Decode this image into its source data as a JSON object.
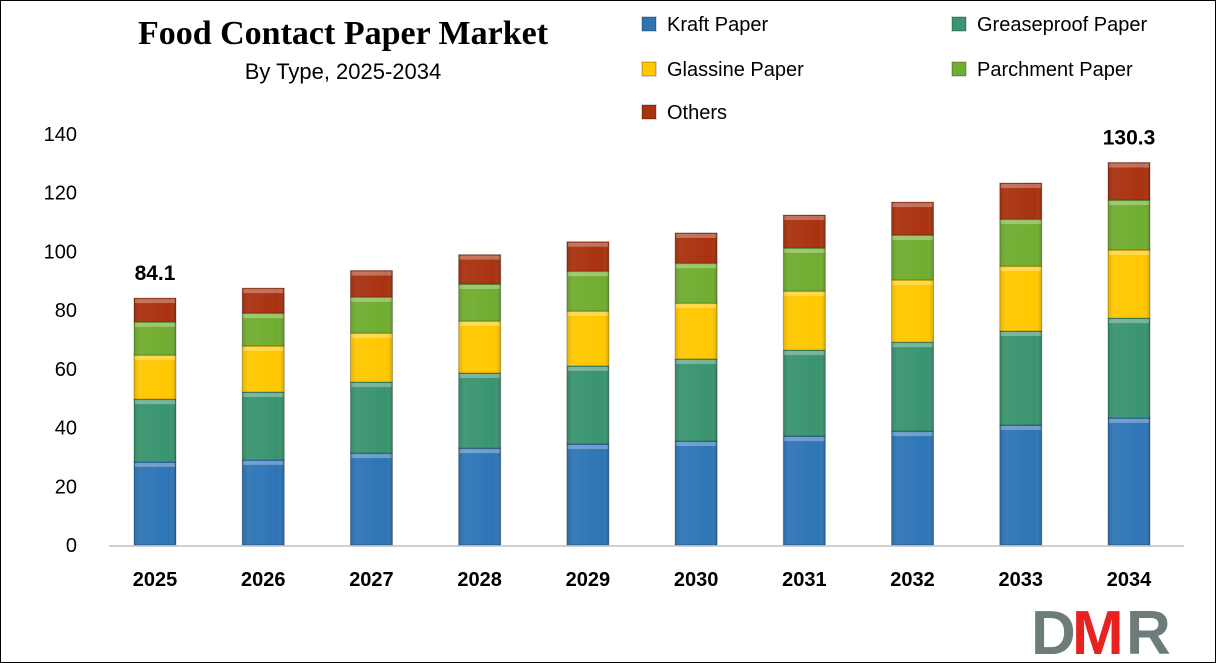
{
  "chart_data": {
    "type": "bar",
    "stacked": true,
    "title": "Food Contact Paper Market",
    "subtitle": "By Type, 2025-2034",
    "xlabel": "",
    "ylabel": "",
    "ylim": [
      0,
      140
    ],
    "yticks": [
      0,
      20,
      40,
      60,
      80,
      100,
      120,
      140
    ],
    "grid": false,
    "legend_position": "top-right",
    "categories": [
      "2025",
      "2026",
      "2027",
      "2028",
      "2029",
      "2030",
      "2031",
      "2032",
      "2033",
      "2034"
    ],
    "series": [
      {
        "name": "Kraft Paper",
        "color": "#2E75B6",
        "values": [
          28.3,
          29.0,
          31.3,
          33.0,
          34.4,
          35.4,
          37.1,
          38.8,
          40.9,
          43.3
        ]
      },
      {
        "name": "Greaseproof Paper",
        "color": "#3A9470",
        "values": [
          21.4,
          23.1,
          24.2,
          25.6,
          26.6,
          28.0,
          29.3,
          30.3,
          32.0,
          34.0
        ]
      },
      {
        "name": "Glassine Paper",
        "color": "#FFC800",
        "values": [
          15.0,
          15.7,
          16.7,
          17.7,
          18.7,
          19.0,
          20.1,
          21.2,
          22.1,
          23.2
        ]
      },
      {
        "name": "Parchment Paper",
        "color": "#70AD30",
        "values": [
          11.3,
          11.2,
          12.3,
          12.6,
          13.6,
          13.6,
          14.7,
          15.3,
          16.0,
          17.0
        ]
      },
      {
        "name": "Others",
        "color": "#A93210",
        "values": [
          8.1,
          8.5,
          9.0,
          10.0,
          10.0,
          10.3,
          11.2,
          11.2,
          12.3,
          12.8
        ]
      }
    ],
    "data_labels": [
      {
        "category": "2025",
        "text": "84.1"
      },
      {
        "category": "2034",
        "text": "130.3"
      }
    ]
  },
  "logo": {
    "text": "DMR",
    "colors": {
      "D": "#6E7B7B",
      "M": "#E8231F",
      "R": "#6E7B7B"
    }
  }
}
